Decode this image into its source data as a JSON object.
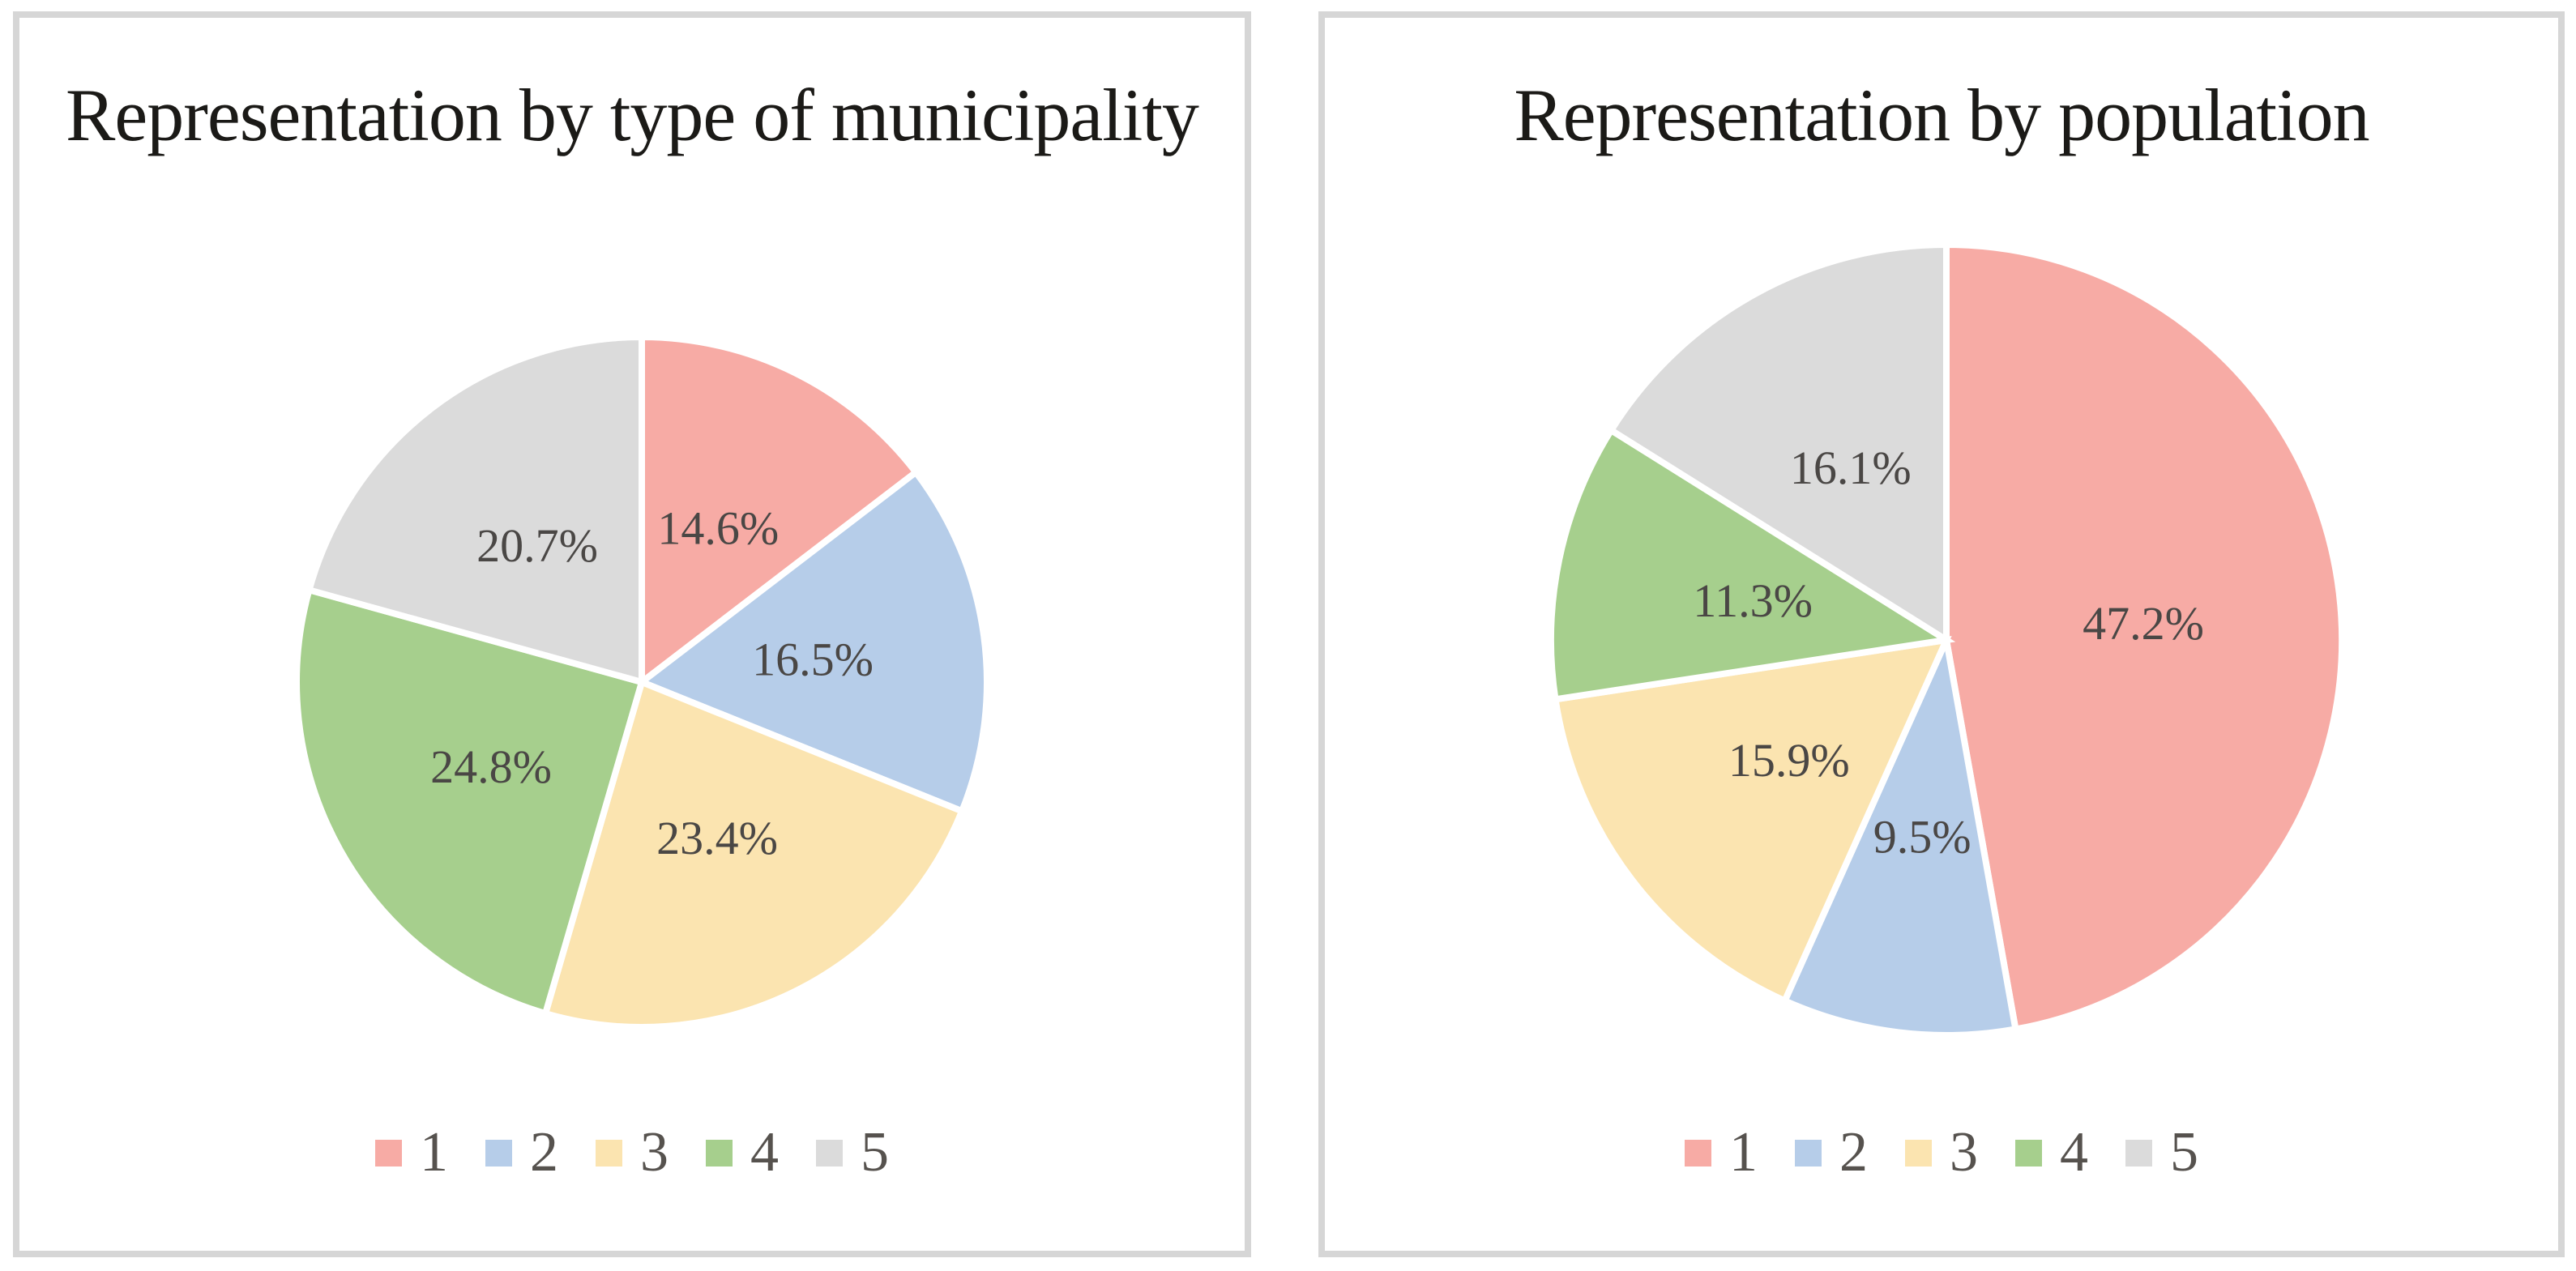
{
  "style": {
    "page_background": "#ffffff",
    "panel_border_color": "#d6d6d6",
    "slice_separator_color": "#ffffff",
    "title_color": "#1b1a17",
    "data_label_color": "#4a4745",
    "legend_text_color": "#56524e"
  },
  "chart_data": [
    {
      "type": "pie",
      "title": "Representation by type of municipality",
      "categories": [
        "1",
        "2",
        "3",
        "4",
        "5"
      ],
      "values": [
        14.6,
        16.5,
        23.4,
        24.8,
        20.7
      ],
      "labels": [
        "14.6%",
        "16.5%",
        "23.4%",
        "24.8%",
        "20.7%"
      ],
      "slice_colors": [
        "#f7aba5",
        "#b6cde9",
        "#fbe4b0",
        "#a6cf8d",
        "#dbdbdb"
      ],
      "start_angle_deg": 0,
      "direction": "clockwise",
      "label_radius_fraction": 0.5,
      "legend_position": "bottom"
    },
    {
      "type": "pie",
      "title": "Representation by population",
      "categories": [
        "1",
        "2",
        "3",
        "4",
        "5"
      ],
      "values": [
        47.2,
        9.5,
        15.9,
        11.3,
        16.1
      ],
      "labels": [
        "47.2%",
        "9.5%",
        "15.9%",
        "11.3%",
        "16.1%"
      ],
      "slice_colors": [
        "#f7aba5",
        "#b6cde9",
        "#fbe4b0",
        "#a6cf8d",
        "#dbdbdb"
      ],
      "start_angle_deg": 0,
      "direction": "clockwise",
      "label_radius_fraction": 0.5,
      "legend_position": "bottom"
    }
  ]
}
